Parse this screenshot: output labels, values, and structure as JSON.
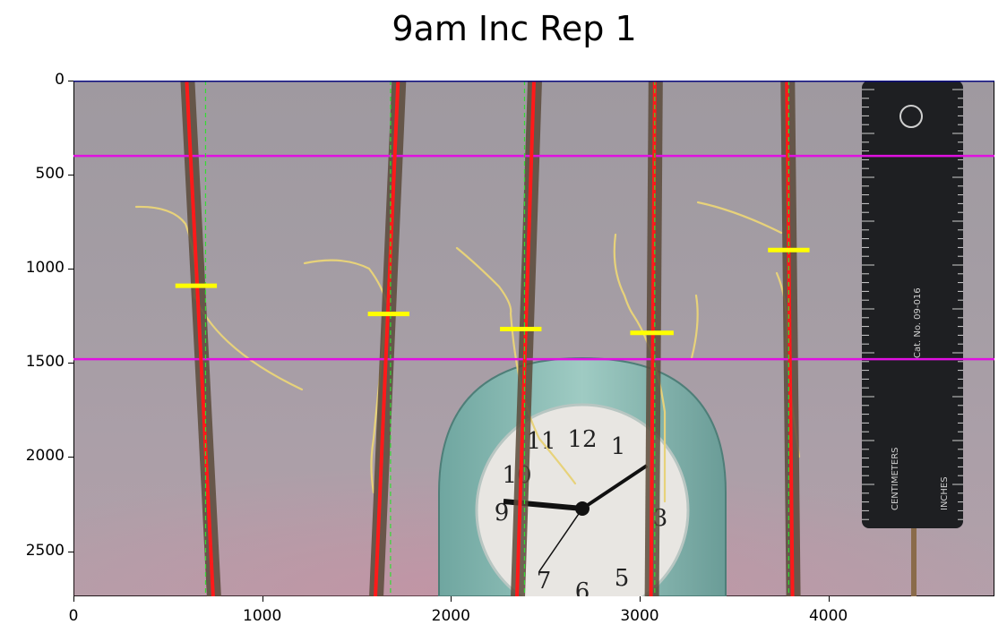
{
  "title": "9am Inc Rep 1",
  "image": {
    "x_max": 4880,
    "y_max": 2740
  },
  "x_ticks": [
    "0",
    "1000",
    "2000",
    "3000",
    "4000"
  ],
  "y_ticks": [
    "0",
    "500",
    "1000",
    "1500",
    "2000",
    "2500"
  ],
  "overlay": {
    "horizontal_lines_y": [
      400,
      1480
    ],
    "seedlings": [
      {
        "fit_x_top": 600,
        "fit_x_bottom": 740,
        "ref_x": 700,
        "marker_y": 1090,
        "marker_x1": 540,
        "marker_x2": 760
      },
      {
        "fit_x_top": 1720,
        "fit_x_bottom": 1600,
        "ref_x": 1680,
        "marker_y": 1240,
        "marker_x1": 1560,
        "marker_x2": 1780
      },
      {
        "fit_x_top": 2440,
        "fit_x_bottom": 2350,
        "ref_x": 2390,
        "marker_y": 1320,
        "marker_x1": 2260,
        "marker_x2": 2480
      },
      {
        "fit_x_top": 3080,
        "fit_x_bottom": 3060,
        "ref_x": 3080,
        "marker_y": 1340,
        "marker_x1": 2950,
        "marker_x2": 3180
      },
      {
        "fit_x_top": 3780,
        "fit_x_bottom": 3810,
        "ref_x": 3790,
        "marker_y": 900,
        "marker_x1": 3680,
        "marker_x2": 3900
      }
    ]
  },
  "colors": {
    "fit_line": "#ff1a1a",
    "ref_line": "#33dd33",
    "marker": "#ffff00",
    "horizontal": "#e011e0",
    "top_border": "#0a0a80"
  },
  "scene": {
    "clock_digits": [
      "12",
      "1",
      "11",
      "10",
      "9",
      "3",
      "7",
      "6",
      "5"
    ],
    "ruler_text": [
      "CENTIMETERS",
      "INCHES",
      "Cat. No. 09-016"
    ]
  }
}
